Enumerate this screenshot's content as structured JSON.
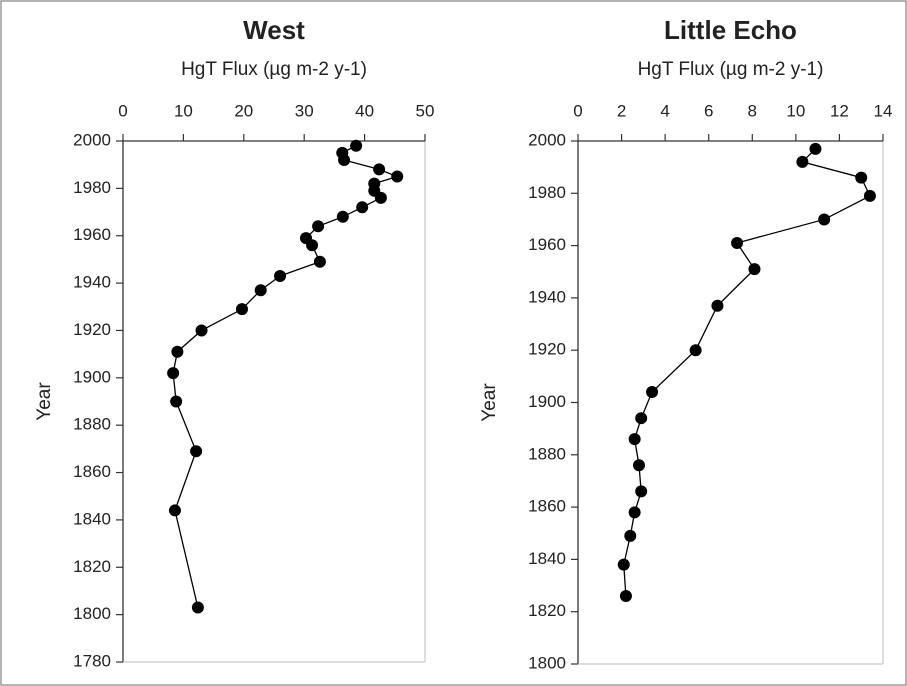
{
  "chart_data": [
    {
      "type": "line",
      "title": "West",
      "y_label": "HgT Flux (µg m-2 y-1)",
      "x_label": "Year",
      "color": "#000000",
      "xlim": [
        1780,
        2000
      ],
      "xticks": [
        1780,
        1800,
        1820,
        1840,
        1860,
        1880,
        1900,
        1920,
        1940,
        1960,
        1980,
        2000
      ],
      "ylim": [
        0,
        50
      ],
      "yticks": [
        0,
        10,
        20,
        30,
        40,
        50
      ],
      "x": [
        1998,
        1995,
        1992,
        1988,
        1985,
        1982,
        1979,
        1976,
        1972,
        1968,
        1964,
        1959,
        1956,
        1949,
        1943,
        1937,
        1929,
        1920,
        1911,
        1902,
        1890,
        1869,
        1844,
        1803
      ],
      "values": [
        38.6,
        36.3,
        36.6,
        42.4,
        45.4,
        41.6,
        41.6,
        42.7,
        39.6,
        36.4,
        32.3,
        30.3,
        31.3,
        32.6,
        26,
        22.8,
        19.7,
        13,
        9,
        8.3,
        8.8,
        12.1,
        8.6,
        12.4
      ]
    },
    {
      "type": "line",
      "title": "Little Echo",
      "y_label": "HgT Flux (µg m-2 y-1)",
      "x_label": "Year",
      "color": "#000000",
      "xlim": [
        1800,
        2000
      ],
      "xticks": [
        1800,
        1820,
        1840,
        1860,
        1880,
        1900,
        1920,
        1940,
        1960,
        1980,
        2000
      ],
      "ylim": [
        0,
        14
      ],
      "yticks": [
        0,
        2,
        4,
        6,
        8,
        10,
        12,
        14
      ],
      "x": [
        1997,
        1992,
        1986,
        1979,
        1970,
        1961,
        1951,
        1937,
        1920,
        1904,
        1894,
        1886,
        1876,
        1866,
        1858,
        1849,
        1838,
        1826
      ],
      "values": [
        10.9,
        10.3,
        13.0,
        13.4,
        11.3,
        7.3,
        8.1,
        6.4,
        5.4,
        3.4,
        2.9,
        2.6,
        2.8,
        2.9,
        2.6,
        2.4,
        2.1,
        2.2
      ]
    }
  ]
}
